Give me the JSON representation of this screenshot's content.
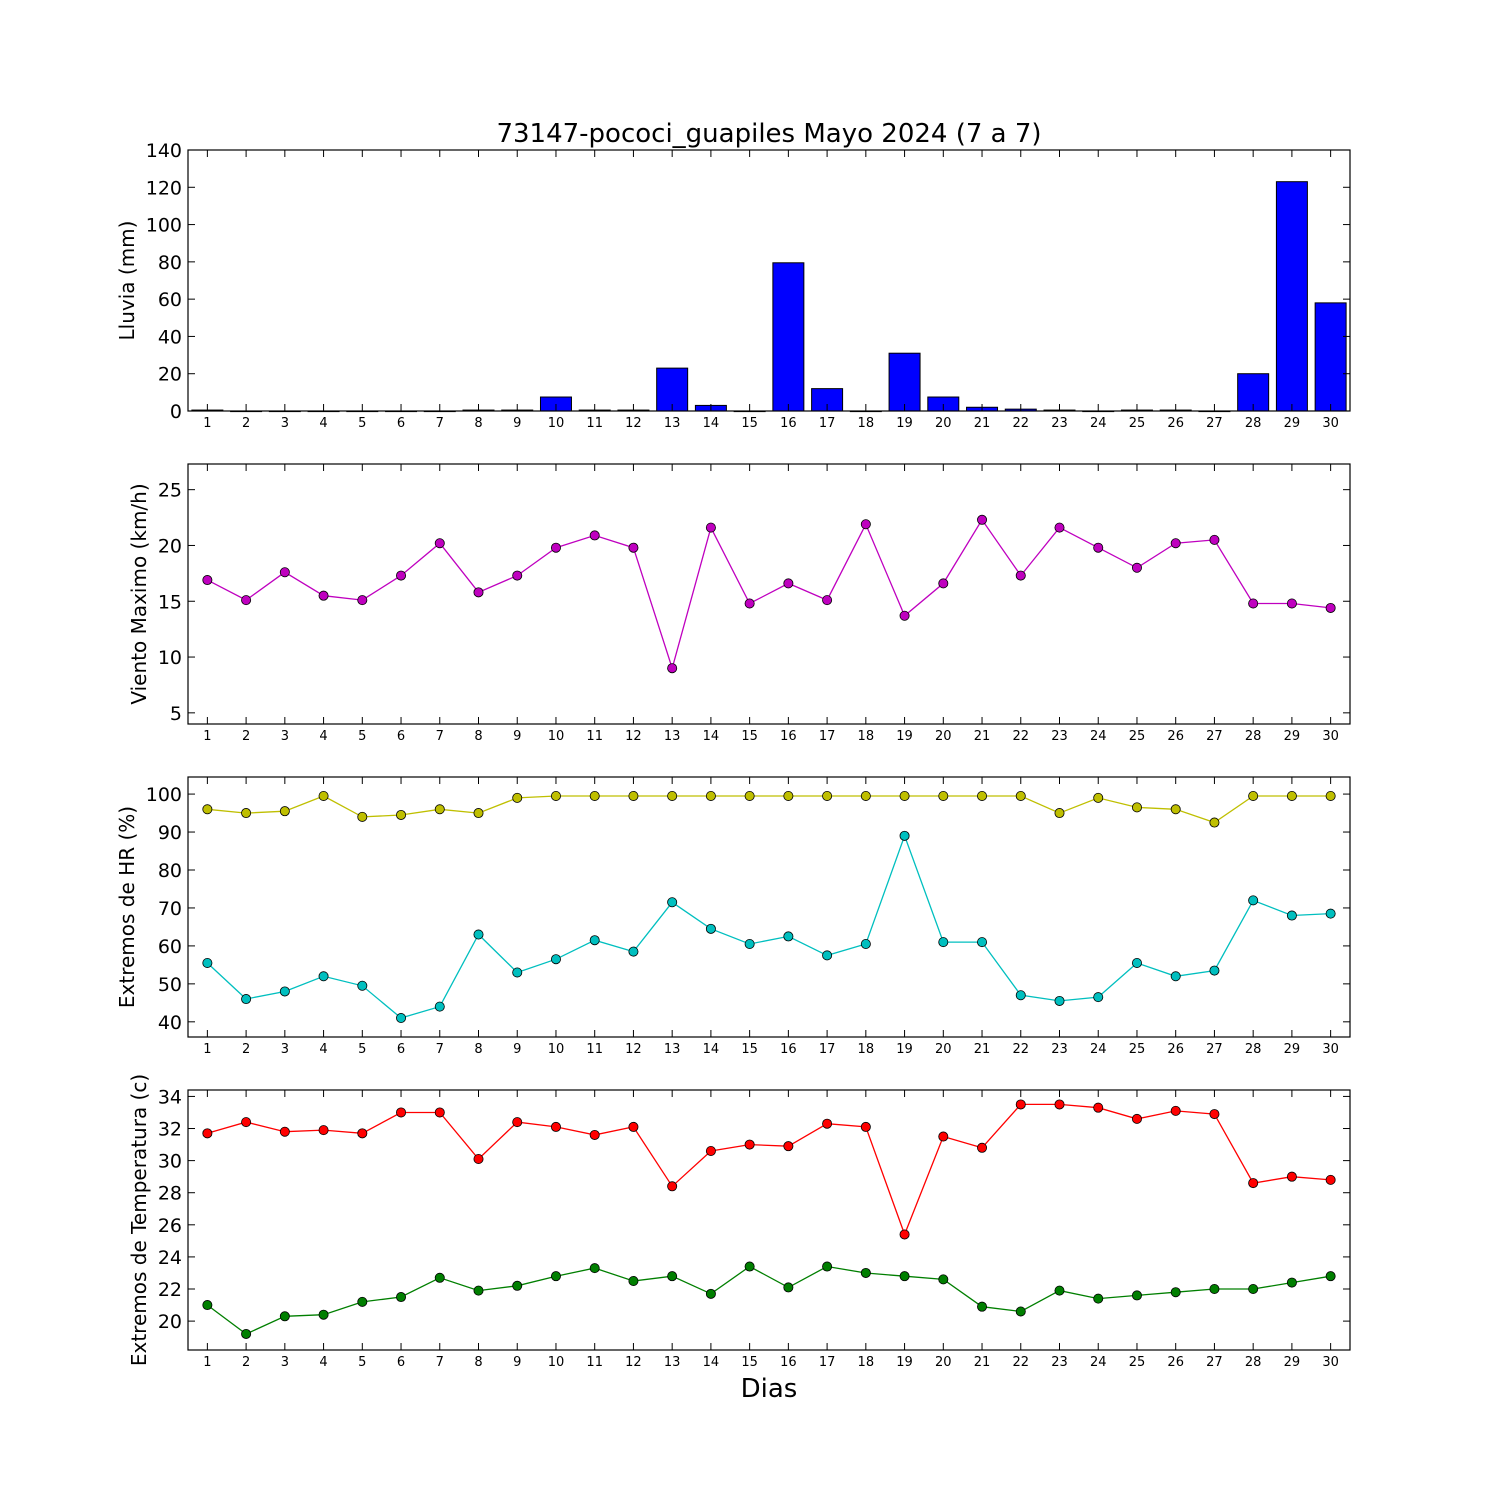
{
  "figure": {
    "title": "73147-pococi_guapiles Mayo 2024  (7 a 7)",
    "xlabel": "Dias"
  },
  "chart_data": [
    {
      "type": "bar",
      "ylabel": "Lluvia (mm)",
      "ylim": [
        0,
        140
      ],
      "yticks": [
        0,
        20,
        40,
        60,
        80,
        100,
        120,
        140
      ],
      "x": [
        1,
        2,
        3,
        4,
        5,
        6,
        7,
        8,
        9,
        10,
        11,
        12,
        13,
        14,
        15,
        16,
        17,
        18,
        19,
        20,
        21,
        22,
        23,
        24,
        25,
        26,
        27,
        28,
        29,
        30
      ],
      "values": [
        0.5,
        0,
        0,
        0,
        0,
        0,
        0,
        0.5,
        0.5,
        7.5,
        0.5,
        0.5,
        23,
        3,
        0,
        79.5,
        12,
        0,
        31,
        7.5,
        2,
        1,
        0.5,
        0,
        0.5,
        0.5,
        0,
        20,
        123,
        58
      ],
      "color": "#0000ff"
    },
    {
      "type": "line",
      "ylabel": "Viento Maximo (km/h)",
      "ylim": [
        4,
        27.3
      ],
      "yticks": [
        5,
        10,
        15,
        20,
        25
      ],
      "x": [
        1,
        2,
        3,
        4,
        5,
        6,
        7,
        8,
        9,
        10,
        11,
        12,
        13,
        14,
        15,
        16,
        17,
        18,
        19,
        20,
        21,
        22,
        23,
        24,
        25,
        26,
        27,
        28,
        29,
        30
      ],
      "series": [
        {
          "values": [
            16.9,
            15.1,
            17.6,
            15.5,
            15.1,
            17.3,
            20.2,
            15.8,
            17.3,
            19.8,
            20.9,
            19.8,
            9.0,
            21.6,
            14.8,
            16.6,
            15.1,
            21.9,
            13.7,
            16.6,
            22.3,
            17.3,
            21.6,
            19.8,
            18.0,
            20.2,
            20.5,
            14.8,
            14.8,
            14.4
          ],
          "color": "#bf00bf"
        }
      ]
    },
    {
      "type": "line",
      "ylabel": "Extremos de HR (%)",
      "ylim": [
        36,
        104.5
      ],
      "yticks": [
        40,
        50,
        60,
        70,
        80,
        90,
        100
      ],
      "x": [
        1,
        2,
        3,
        4,
        5,
        6,
        7,
        8,
        9,
        10,
        11,
        12,
        13,
        14,
        15,
        16,
        17,
        18,
        19,
        20,
        21,
        22,
        23,
        24,
        25,
        26,
        27,
        28,
        29,
        30
      ],
      "series": [
        {
          "values": [
            96,
            95,
            95.5,
            99.5,
            94,
            94.5,
            96,
            95,
            99,
            99.5,
            99.5,
            99.5,
            99.5,
            99.5,
            99.5,
            99.5,
            99.5,
            99.5,
            99.5,
            99.5,
            99.5,
            99.5,
            95,
            99,
            96.5,
            96,
            92.5,
            99.5,
            99.5,
            99.5
          ],
          "color": "#bfbf00"
        },
        {
          "values": [
            55.5,
            46,
            48,
            52,
            49.5,
            41,
            44,
            63,
            53,
            56.5,
            61.5,
            58.5,
            71.5,
            64.5,
            60.5,
            62.5,
            57.5,
            60.5,
            89,
            61,
            61,
            47,
            45.5,
            46.5,
            55.5,
            52,
            53.5,
            72,
            68,
            68.5
          ],
          "color": "#00bfbf"
        }
      ]
    },
    {
      "type": "line",
      "ylabel": "Extremos de Temperatura (c)",
      "ylim": [
        18.2,
        34.4
      ],
      "yticks": [
        20,
        22,
        24,
        26,
        28,
        30,
        32,
        34
      ],
      "x": [
        1,
        2,
        3,
        4,
        5,
        6,
        7,
        8,
        9,
        10,
        11,
        12,
        13,
        14,
        15,
        16,
        17,
        18,
        19,
        20,
        21,
        22,
        23,
        24,
        25,
        26,
        27,
        28,
        29,
        30
      ],
      "series": [
        {
          "values": [
            31.7,
            32.4,
            31.8,
            31.9,
            31.7,
            33.0,
            33.0,
            30.1,
            32.4,
            32.1,
            31.6,
            32.1,
            28.4,
            30.6,
            31.0,
            30.9,
            32.3,
            32.1,
            25.4,
            31.5,
            30.8,
            33.5,
            33.5,
            33.3,
            32.6,
            33.1,
            32.9,
            28.6,
            29.0,
            28.8
          ],
          "color": "#ff0000"
        },
        {
          "values": [
            21.0,
            19.2,
            20.3,
            20.4,
            21.2,
            21.5,
            22.7,
            21.9,
            22.2,
            22.8,
            23.3,
            22.5,
            22.8,
            21.7,
            23.4,
            22.1,
            23.4,
            23.0,
            22.8,
            22.6,
            20.9,
            20.6,
            21.9,
            21.4,
            21.6,
            21.8,
            22.0,
            22.0,
            22.4,
            22.8
          ],
          "color": "#007f00"
        }
      ]
    }
  ]
}
